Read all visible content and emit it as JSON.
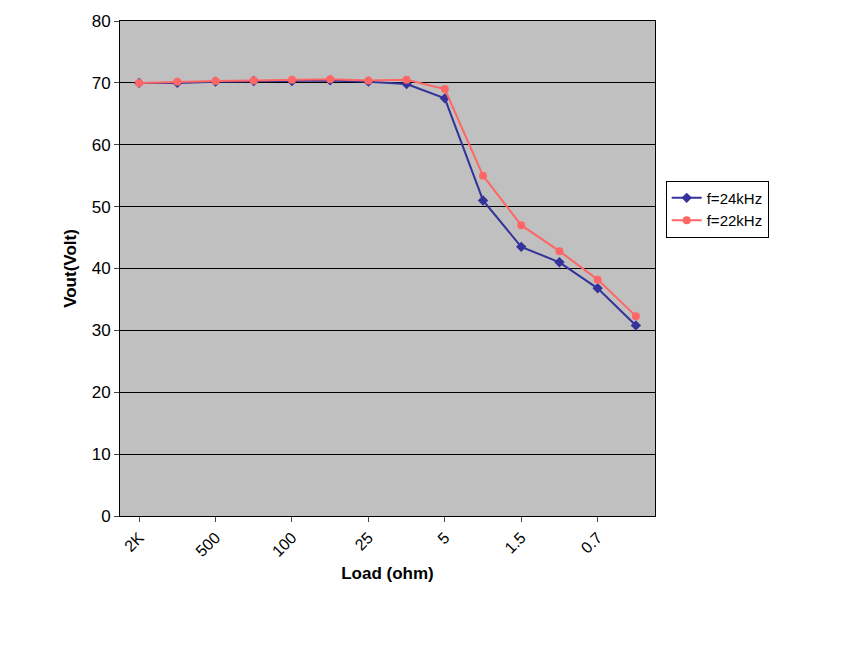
{
  "chart_data": {
    "type": "line",
    "x_label": "Load (ohm)",
    "y_label": "Vout(Volt)",
    "categories": [
      "2K",
      null,
      "500",
      null,
      "100",
      null,
      "25",
      null,
      "5",
      null,
      "1.5",
      null,
      "0.7",
      null
    ],
    "series": [
      {
        "name": "f=24kHz",
        "color": "#333399",
        "marker": "diamond",
        "values": [
          70,
          70,
          70.2,
          70.3,
          70.3,
          70.4,
          70.2,
          69.8,
          67.5,
          51,
          43.5,
          41,
          36.8,
          30.8
        ]
      },
      {
        "name": "f=22kHz",
        "color": "#ff6666",
        "marker": "circle",
        "values": [
          70,
          70.2,
          70.3,
          70.4,
          70.5,
          70.6,
          70.4,
          70.5,
          69,
          55,
          47,
          42.8,
          38.2,
          32.3
        ]
      }
    ],
    "ylim": [
      0,
      80
    ],
    "yticks": [
      0,
      10,
      20,
      30,
      40,
      50,
      60,
      70,
      80
    ],
    "grid": true,
    "legend": "right"
  }
}
